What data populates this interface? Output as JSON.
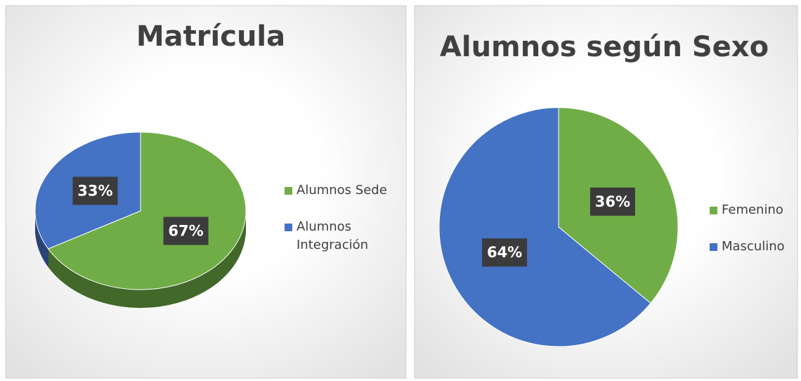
{
  "chart_data": [
    {
      "type": "pie3d",
      "title": "Matrícula",
      "categories": [
        "Alumnos Sede",
        "Alumnos Integración"
      ],
      "values": [
        67,
        33
      ],
      "value_labels": [
        "67%",
        "33%"
      ],
      "colors": [
        "#70ad47",
        "#4472c4"
      ],
      "legend": "right"
    },
    {
      "type": "pie",
      "title": "Alumnos según Sexo",
      "categories": [
        "Femenino",
        "Masculino"
      ],
      "values": [
        36,
        64
      ],
      "value_labels": [
        "36%",
        "64%"
      ],
      "colors": [
        "#70ad47",
        "#4472c4"
      ],
      "legend": "right"
    }
  ]
}
